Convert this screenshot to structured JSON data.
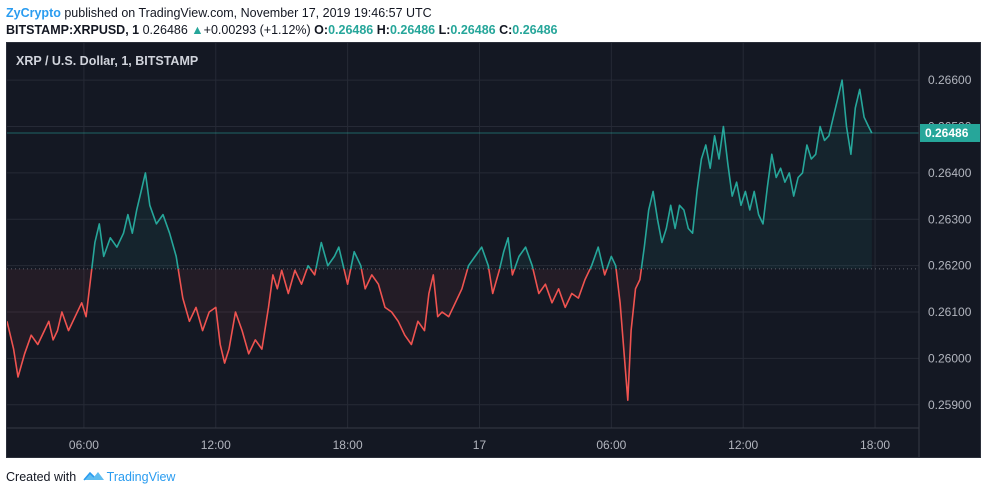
{
  "header": {
    "author": "ZyCrypto",
    "published_text": "published on TradingView.com, November 17, 2019 19:46:57 UTC",
    "symbol": "BITSTAMP:XRPUSD, 1",
    "last": "0.26486",
    "change_arrow": "▲",
    "change": "+0.00293 (+1.12%)",
    "o_label": "O:",
    "o": "0.26486",
    "h_label": "H:",
    "h": "0.26486",
    "l_label": "L:",
    "l": "0.26486",
    "c_label": "C:",
    "c": "0.26486"
  },
  "chart_title": "XRP / U.S. Dollar, 1, BITSTAMP",
  "footer": {
    "created_with": "Created with",
    "brand": "TradingView"
  },
  "colors": {
    "background": "#141823",
    "grid": "#262a36",
    "up": "#26a69a",
    "down": "#ef5350",
    "author": "#2a9cf0",
    "axis_text": "#b2b5be"
  },
  "chart_data": {
    "type": "line",
    "title": "XRP / U.S. Dollar, 1, BITSTAMP",
    "baseline_price": 0.26193,
    "last_price": 0.26486,
    "last_price_label": "0.26486",
    "ylim": [
      0.2585,
      0.2668
    ],
    "y_ticks": [
      0.259,
      0.26,
      0.261,
      0.262,
      0.263,
      0.264,
      0.265,
      0.266
    ],
    "y_tick_labels": [
      "0.25900",
      "0.26000",
      "0.26100",
      "0.26200",
      "0.26300",
      "0.26400",
      "0.26500",
      "0.26600"
    ],
    "x_ticks": [
      {
        "label": "06:00",
        "t": 6
      },
      {
        "label": "12:00",
        "t": 12
      },
      {
        "label": "18:00",
        "t": 18
      },
      {
        "label": "17",
        "t": 24
      },
      {
        "label": "06:00",
        "t": 30
      },
      {
        "label": "12:00",
        "t": 36
      },
      {
        "label": "18:00",
        "t": 42
      }
    ],
    "xlim": [
      2.5,
      44.0
    ],
    "series": [
      {
        "points": [
          [
            2.5,
            0.2608
          ],
          [
            2.8,
            0.2602
          ],
          [
            3.0,
            0.2596
          ],
          [
            3.3,
            0.2601
          ],
          [
            3.6,
            0.2605
          ],
          [
            3.9,
            0.2603
          ],
          [
            4.2,
            0.2606
          ],
          [
            4.4,
            0.2608
          ],
          [
            4.6,
            0.2604
          ],
          [
            4.8,
            0.2606
          ],
          [
            5.0,
            0.261
          ],
          [
            5.3,
            0.2606
          ],
          [
            5.6,
            0.2609
          ],
          [
            5.9,
            0.2612
          ],
          [
            6.1,
            0.2609
          ],
          [
            6.3,
            0.2617
          ],
          [
            6.5,
            0.2625
          ],
          [
            6.7,
            0.2629
          ],
          [
            6.9,
            0.2622
          ],
          [
            7.2,
            0.2626
          ],
          [
            7.5,
            0.2624
          ],
          [
            7.8,
            0.2627
          ],
          [
            8.0,
            0.2631
          ],
          [
            8.2,
            0.2627
          ],
          [
            8.4,
            0.2632
          ],
          [
            8.6,
            0.2636
          ],
          [
            8.8,
            0.264
          ],
          [
            9.0,
            0.2633
          ],
          [
            9.3,
            0.2629
          ],
          [
            9.6,
            0.2631
          ],
          [
            9.9,
            0.2627
          ],
          [
            10.2,
            0.2622
          ],
          [
            10.5,
            0.2613
          ],
          [
            10.8,
            0.2608
          ],
          [
            11.1,
            0.2611
          ],
          [
            11.4,
            0.2606
          ],
          [
            11.7,
            0.261
          ],
          [
            12.0,
            0.2611
          ],
          [
            12.2,
            0.2603
          ],
          [
            12.4,
            0.2599
          ],
          [
            12.6,
            0.2602
          ],
          [
            12.9,
            0.261
          ],
          [
            13.2,
            0.2606
          ],
          [
            13.5,
            0.2601
          ],
          [
            13.8,
            0.2604
          ],
          [
            14.1,
            0.2602
          ],
          [
            14.4,
            0.2611
          ],
          [
            14.6,
            0.2618
          ],
          [
            14.8,
            0.2615
          ],
          [
            15.0,
            0.2619
          ],
          [
            15.3,
            0.2614
          ],
          [
            15.6,
            0.2619
          ],
          [
            15.9,
            0.2616
          ],
          [
            16.2,
            0.262
          ],
          [
            16.5,
            0.2618
          ],
          [
            16.8,
            0.2625
          ],
          [
            17.1,
            0.262
          ],
          [
            17.4,
            0.2622
          ],
          [
            17.6,
            0.2624
          ],
          [
            17.8,
            0.262
          ],
          [
            18.0,
            0.2616
          ],
          [
            18.3,
            0.2623
          ],
          [
            18.6,
            0.262
          ],
          [
            18.8,
            0.2615
          ],
          [
            19.1,
            0.2618
          ],
          [
            19.4,
            0.2616
          ],
          [
            19.7,
            0.2611
          ],
          [
            20.0,
            0.261
          ],
          [
            20.3,
            0.2608
          ],
          [
            20.6,
            0.2605
          ],
          [
            20.9,
            0.2603
          ],
          [
            21.2,
            0.2608
          ],
          [
            21.5,
            0.2606
          ],
          [
            21.7,
            0.2614
          ],
          [
            21.9,
            0.2618
          ],
          [
            22.1,
            0.2609
          ],
          [
            22.3,
            0.261
          ],
          [
            22.6,
            0.2609
          ],
          [
            22.9,
            0.2612
          ],
          [
            23.2,
            0.2615
          ],
          [
            23.5,
            0.262
          ],
          [
            23.8,
            0.2622
          ],
          [
            24.1,
            0.2624
          ],
          [
            24.4,
            0.262
          ],
          [
            24.6,
            0.2614
          ],
          [
            24.9,
            0.2619
          ],
          [
            25.1,
            0.2623
          ],
          [
            25.3,
            0.2626
          ],
          [
            25.5,
            0.2618
          ],
          [
            25.8,
            0.2622
          ],
          [
            26.1,
            0.2624
          ],
          [
            26.4,
            0.262
          ],
          [
            26.7,
            0.2614
          ],
          [
            27.0,
            0.2616
          ],
          [
            27.3,
            0.2612
          ],
          [
            27.6,
            0.2615
          ],
          [
            27.9,
            0.2611
          ],
          [
            28.2,
            0.2614
          ],
          [
            28.5,
            0.2613
          ],
          [
            28.8,
            0.2617
          ],
          [
            29.1,
            0.262
          ],
          [
            29.4,
            0.2624
          ],
          [
            29.7,
            0.2618
          ],
          [
            30.0,
            0.2622
          ],
          [
            30.2,
            0.262
          ],
          [
            30.4,
            0.2612
          ],
          [
            30.6,
            0.26
          ],
          [
            30.75,
            0.2591
          ],
          [
            30.9,
            0.2606
          ],
          [
            31.1,
            0.2615
          ],
          [
            31.3,
            0.2617
          ],
          [
            31.5,
            0.2624
          ],
          [
            31.7,
            0.2632
          ],
          [
            31.9,
            0.2636
          ],
          [
            32.1,
            0.263
          ],
          [
            32.3,
            0.2625
          ],
          [
            32.5,
            0.2628
          ],
          [
            32.7,
            0.2633
          ],
          [
            32.9,
            0.2628
          ],
          [
            33.1,
            0.2633
          ],
          [
            33.3,
            0.2632
          ],
          [
            33.5,
            0.2628
          ],
          [
            33.7,
            0.2627
          ],
          [
            33.9,
            0.2636
          ],
          [
            34.1,
            0.2643
          ],
          [
            34.3,
            0.2646
          ],
          [
            34.5,
            0.2641
          ],
          [
            34.7,
            0.2648
          ],
          [
            34.9,
            0.2643
          ],
          [
            35.1,
            0.265
          ],
          [
            35.3,
            0.2642
          ],
          [
            35.5,
            0.2635
          ],
          [
            35.7,
            0.2638
          ],
          [
            35.9,
            0.2633
          ],
          [
            36.1,
            0.2636
          ],
          [
            36.3,
            0.2632
          ],
          [
            36.5,
            0.2636
          ],
          [
            36.7,
            0.2631
          ],
          [
            36.9,
            0.2629
          ],
          [
            37.1,
            0.2637
          ],
          [
            37.3,
            0.2644
          ],
          [
            37.5,
            0.2639
          ],
          [
            37.7,
            0.2641
          ],
          [
            37.9,
            0.2638
          ],
          [
            38.1,
            0.264
          ],
          [
            38.3,
            0.2635
          ],
          [
            38.5,
            0.2639
          ],
          [
            38.7,
            0.264
          ],
          [
            38.9,
            0.2646
          ],
          [
            39.1,
            0.2643
          ],
          [
            39.3,
            0.2644
          ],
          [
            39.5,
            0.265
          ],
          [
            39.7,
            0.2647
          ],
          [
            39.9,
            0.2648
          ],
          [
            40.1,
            0.2652
          ],
          [
            40.3,
            0.2656
          ],
          [
            40.5,
            0.266
          ],
          [
            40.7,
            0.265
          ],
          [
            40.9,
            0.2644
          ],
          [
            41.1,
            0.2654
          ],
          [
            41.3,
            0.2658
          ],
          [
            41.5,
            0.2652
          ],
          [
            41.7,
            0.265
          ],
          [
            41.85,
            0.26486
          ]
        ]
      }
    ]
  }
}
